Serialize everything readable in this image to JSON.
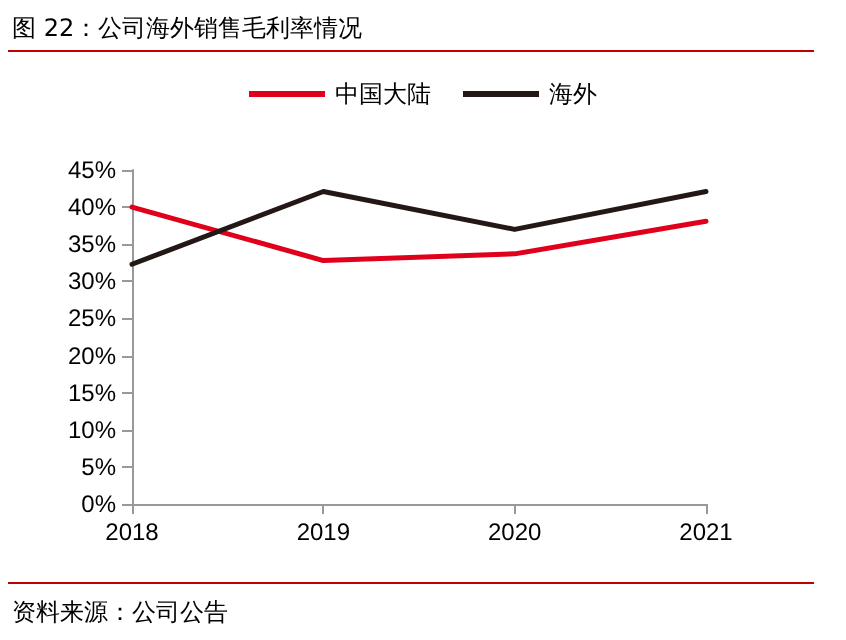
{
  "chart_data": {
    "type": "line",
    "title": "图 22：公司海外销售毛利率情况",
    "categories": [
      "2018",
      "2019",
      "2020",
      "2021"
    ],
    "series": [
      {
        "name": "中国大陆",
        "color": "#e0001b",
        "values": [
          40.0,
          32.8,
          33.7,
          38.1
        ]
      },
      {
        "name": "海外",
        "color": "#231815",
        "values": [
          32.3,
          42.1,
          37.0,
          42.1
        ]
      }
    ],
    "ylim": [
      0,
      45
    ],
    "yticks": [
      {
        "value": 0,
        "label": "0%"
      },
      {
        "value": 5,
        "label": "5%"
      },
      {
        "value": 10,
        "label": "10%"
      },
      {
        "value": 15,
        "label": "15%"
      },
      {
        "value": 20,
        "label": "20%"
      },
      {
        "value": 25,
        "label": "25%"
      },
      {
        "value": 30,
        "label": "30%"
      },
      {
        "value": 35,
        "label": "35%"
      },
      {
        "value": 40,
        "label": "40%"
      },
      {
        "value": 45,
        "label": "45%"
      }
    ],
    "grid": false,
    "legend": "top",
    "marker": "none",
    "line_style": "solid",
    "annotations": [
      "资料来源：公司公告"
    ]
  }
}
